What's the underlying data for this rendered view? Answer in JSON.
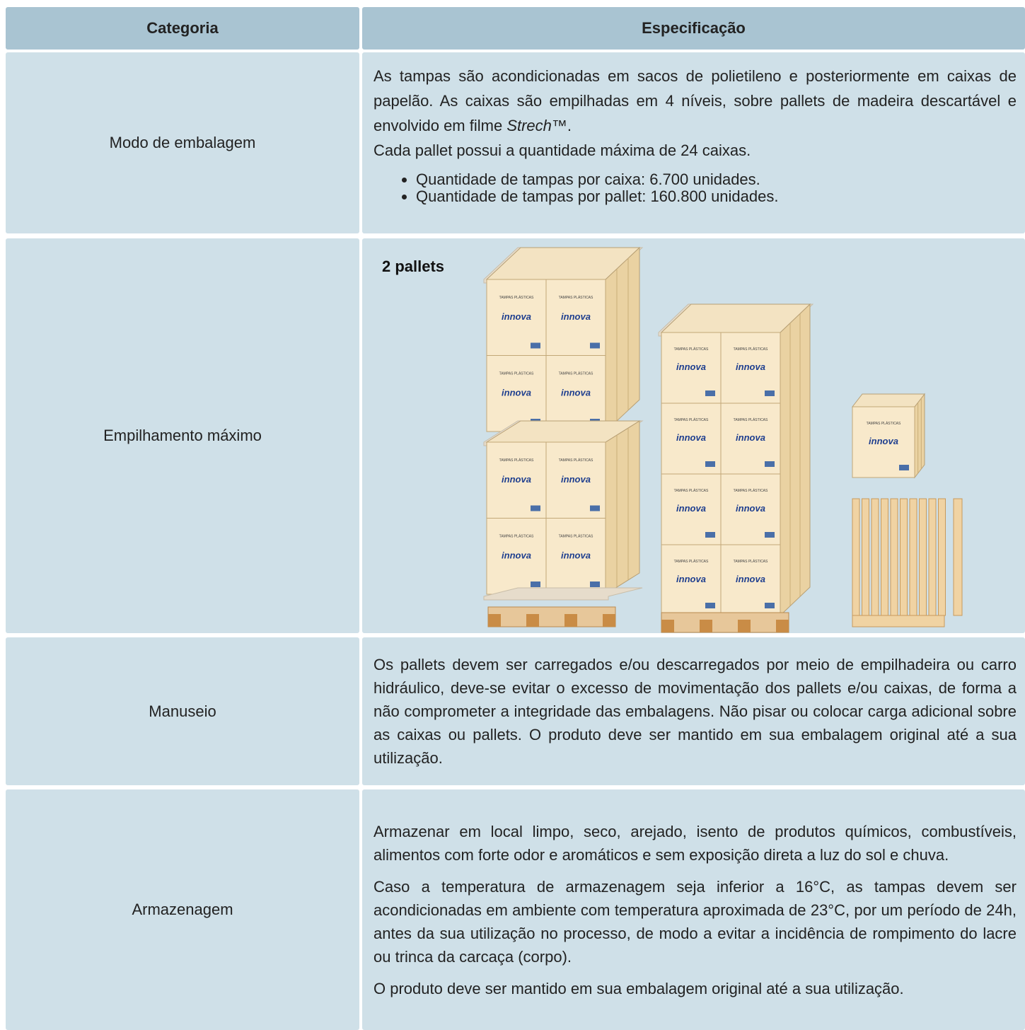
{
  "table": {
    "header": [
      "Categoria",
      "Especificação"
    ],
    "rows": [
      {
        "category": "Modo de embalagem",
        "paragraph": {
          "before": "As tampas são acondicionadas em sacos de polietileno e posteriormente em caixas de papelão. As caixas são empilhadas em 4 níveis, sobre pallets de madeira descartável e envolvido em filme ",
          "italic": "Strech",
          "after": "™."
        },
        "note": "Cada pallet possui a quantidade máxima de 24 caixas.",
        "bullets": [
          "Quantidade de tampas por caixa: 6.700 unidades.",
          "Quantidade de tampas por pallet: 160.800 unidades."
        ]
      },
      {
        "category": "Empilhamento máximo",
        "label": "2 pallets",
        "box_text": "TAMPAS PLÁSTICAS",
        "brand": "innova"
      },
      {
        "category": "Manuseio",
        "paragraphs": [
          "Os pallets devem ser carregados e/ou descarregados por meio de empilhadeira ou carro hidráulico, deve-se evitar o excesso de movimentação dos pallets e/ou caixas, de forma a não comprometer a integridade das embalagens. Não pisar ou colocar carga adicional sobre as caixas ou pallets. O produto deve ser mantido em sua embalagem original até a sua utilização."
        ]
      },
      {
        "category": "Armazenagem",
        "paragraphs": [
          "Armazenar em local limpo, seco, arejado, isento de produtos químicos, combustíveis, alimentos com forte odor e aromáticos e sem exposição direta a luz do sol e chuva.",
          "Caso a temperatura de armazenagem seja inferior a 16°C, as tampas devem ser acondicionadas em ambiente com temperatura aproximada de 23°C, por um período de 24h, antes da sua utilização no processo, de modo a evitar a incidência de rompimento do lacre ou trinca da carcaça (corpo).",
          "O produto deve ser mantido em sua embalagem original até a sua utilização."
        ]
      }
    ]
  }
}
